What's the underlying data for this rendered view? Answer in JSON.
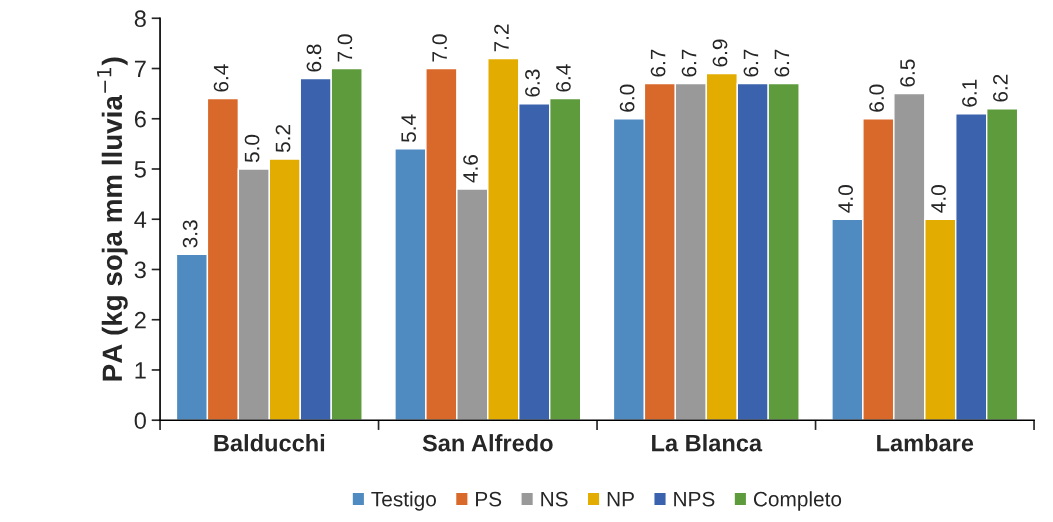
{
  "chart_data": {
    "type": "bar",
    "ylabel": "PA (kg soja mm lluvia$^{−1}$)",
    "categories": [
      "Balducchi",
      "San Alfredo",
      "La Blanca",
      "Lambare"
    ],
    "series": [
      {
        "name": "Testigo",
        "color": "#4f8ac1",
        "values": [
          3.3,
          5.4,
          6.0,
          4.0
        ],
        "value_labels": [
          "3.3",
          "5.4",
          "6.0",
          "4.0"
        ]
      },
      {
        "name": "PS",
        "color": "#d9682b",
        "values": [
          6.4,
          7.0,
          6.7,
          6.0
        ],
        "value_labels": [
          "6.4",
          "7.0",
          "6.7",
          "6.0"
        ]
      },
      {
        "name": "NS",
        "color": "#999999",
        "values": [
          5.0,
          4.6,
          6.7,
          6.5
        ],
        "value_labels": [
          "5.0",
          "4.6",
          "6.7",
          "6.5"
        ]
      },
      {
        "name": "NP",
        "color": "#e3ac00",
        "values": [
          5.2,
          7.2,
          6.9,
          4.0
        ],
        "value_labels": [
          "5.2",
          "7.2",
          "6.9",
          "4.0"
        ]
      },
      {
        "name": "NPS",
        "color": "#3a62ad",
        "values": [
          6.8,
          6.3,
          6.7,
          6.1
        ],
        "value_labels": [
          "6.8",
          "6.3",
          "6.7",
          "6.1"
        ]
      },
      {
        "name": "Completo",
        "color": "#5e9b3d",
        "values": [
          7.0,
          6.4,
          6.7,
          6.2
        ],
        "value_labels": [
          "7.0",
          "6.4",
          "6.7",
          "6.2"
        ]
      }
    ],
    "ylim": [
      0,
      8
    ],
    "yticks": [
      0,
      1,
      2,
      3,
      4,
      5,
      6,
      7,
      8
    ],
    "grid": false,
    "legend": "bottom"
  }
}
